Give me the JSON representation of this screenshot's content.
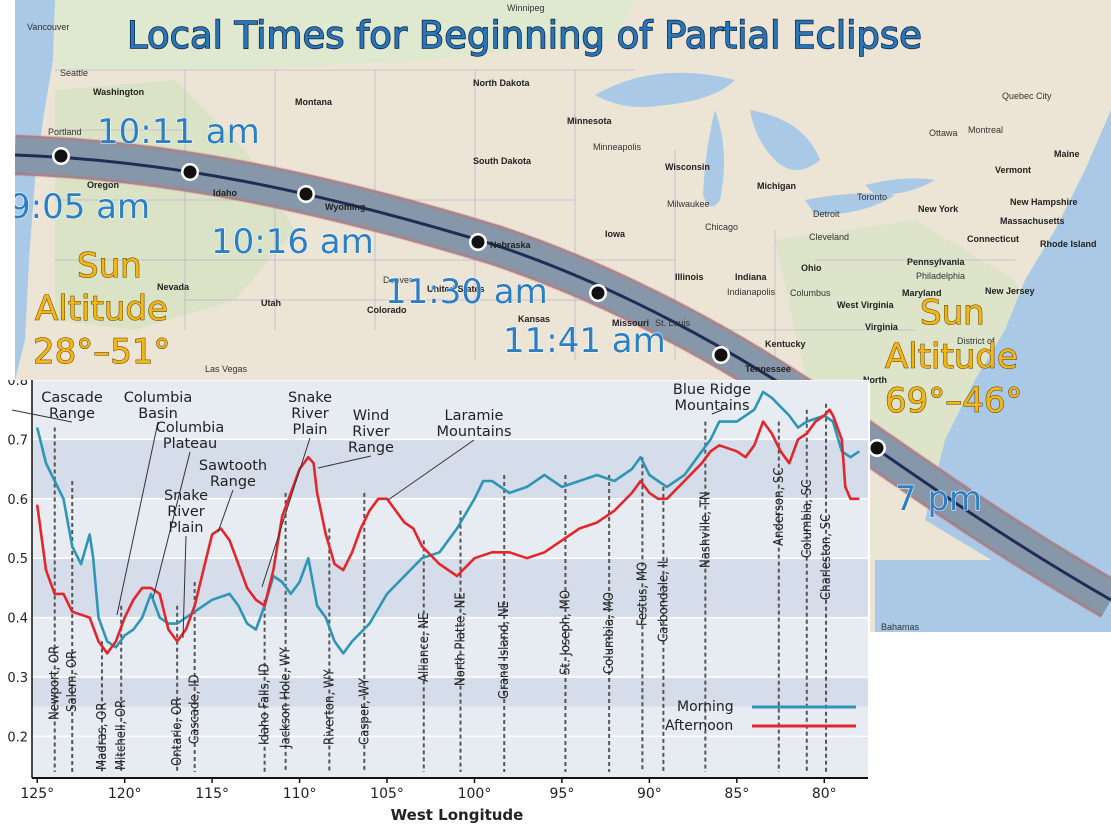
{
  "map": {
    "title": "Local Times for Beginning of Partial Eclipse",
    "times": [
      "10:11 am",
      "9:05 am",
      "10:16 am",
      "11:30 am",
      "11:41 am",
      "7 pm"
    ],
    "altitude_west": {
      "line1": "Sun",
      "line2": "Altitude",
      "line3": "28°–51°"
    },
    "altitude_east": {
      "line1": "Sun",
      "line2": "Altitude",
      "line3": "69°–46°"
    },
    "place_labels": [
      "Winnipeg",
      "Vancouver",
      "Seattle",
      "Washington",
      "Portland",
      "Montana",
      "North Dakota",
      "Minnesota",
      "Minneapolis",
      "South Dakota",
      "Wisconsin",
      "Michigan",
      "Milwaukee",
      "Detroit",
      "Toronto",
      "Ottawa",
      "Montreal",
      "Quebec City",
      "Maine",
      "Vermont",
      "New Hampshire",
      "Massachusetts",
      "New York",
      "Connecticut",
      "Rhode Island",
      "Oregon",
      "Idaho",
      "Wyoming",
      "Nebraska",
      "Iowa",
      "Chicago",
      "Cleveland",
      "Pennsylvania",
      "Philadelphia",
      "New Jersey",
      "Nevada",
      "Utah",
      "Colorado",
      "United States",
      "Denver",
      "Kansas",
      "Missouri",
      "St. Louis",
      "Illinois",
      "Indiana",
      "Indianapolis",
      "Ohio",
      "Columbus",
      "West Virginia",
      "Maryland",
      "Virginia",
      "Kentucky",
      "Tennessee",
      "Las Vegas",
      "North",
      "District of",
      "Bahamas"
    ]
  },
  "chart_data": {
    "type": "line",
    "title": "",
    "xlabel": "West Longitude",
    "ylabel": "",
    "x_direction": "reversed",
    "xlim": [
      125.3,
      77.5
    ],
    "ylim": [
      0.13,
      0.8
    ],
    "x_ticks": [
      125,
      120,
      115,
      110,
      105,
      100,
      95,
      90,
      85,
      80
    ],
    "x_tick_labels": [
      "125°",
      "120°",
      "115°",
      "110°",
      "105°",
      "100°",
      "95°",
      "90°",
      "85°",
      "80°"
    ],
    "y_ticks": [
      0.2,
      0.3,
      0.4,
      0.5,
      0.6,
      0.7,
      0.8
    ],
    "y_tick_labels": [
      "0.2",
      "0.3",
      "0.4",
      "0.5",
      "0.6",
      "0.7",
      "0.8"
    ],
    "grid": "horizontal bands",
    "legend_position": "bottom-right",
    "series": [
      {
        "name": "Morning",
        "color": "#2f95b4",
        "points": [
          [
            125.0,
            0.72
          ],
          [
            124.5,
            0.66
          ],
          [
            124.0,
            0.63
          ],
          [
            123.5,
            0.6
          ],
          [
            123.0,
            0.52
          ],
          [
            122.5,
            0.49
          ],
          [
            122.0,
            0.54
          ],
          [
            121.8,
            0.5
          ],
          [
            121.5,
            0.4
          ],
          [
            121.0,
            0.36
          ],
          [
            120.5,
            0.35
          ],
          [
            120.0,
            0.37
          ],
          [
            119.5,
            0.38
          ],
          [
            119.0,
            0.4
          ],
          [
            118.5,
            0.44
          ],
          [
            118.0,
            0.4
          ],
          [
            117.5,
            0.39
          ],
          [
            117.0,
            0.39
          ],
          [
            116.5,
            0.4
          ],
          [
            116.0,
            0.41
          ],
          [
            115.0,
            0.43
          ],
          [
            114.0,
            0.44
          ],
          [
            113.5,
            0.42
          ],
          [
            113.0,
            0.39
          ],
          [
            112.5,
            0.38
          ],
          [
            112.0,
            0.42
          ],
          [
            111.5,
            0.47
          ],
          [
            111.0,
            0.46
          ],
          [
            110.5,
            0.44
          ],
          [
            110.0,
            0.46
          ],
          [
            109.5,
            0.5
          ],
          [
            109.0,
            0.42
          ],
          [
            108.5,
            0.4
          ],
          [
            108.0,
            0.36
          ],
          [
            107.5,
            0.34
          ],
          [
            107.0,
            0.36
          ],
          [
            106.0,
            0.39
          ],
          [
            105.0,
            0.44
          ],
          [
            104.0,
            0.47
          ],
          [
            103.0,
            0.5
          ],
          [
            102.0,
            0.51
          ],
          [
            101.0,
            0.55
          ],
          [
            100.0,
            0.6
          ],
          [
            99.5,
            0.63
          ],
          [
            99.0,
            0.63
          ],
          [
            98.0,
            0.61
          ],
          [
            97.0,
            0.62
          ],
          [
            96.0,
            0.64
          ],
          [
            95.0,
            0.62
          ],
          [
            94.0,
            0.63
          ],
          [
            93.0,
            0.64
          ],
          [
            92.0,
            0.63
          ],
          [
            91.0,
            0.65
          ],
          [
            90.5,
            0.67
          ],
          [
            90.0,
            0.64
          ],
          [
            89.5,
            0.63
          ],
          [
            89.0,
            0.62
          ],
          [
            88.0,
            0.64
          ],
          [
            87.0,
            0.68
          ],
          [
            86.5,
            0.7
          ],
          [
            86.0,
            0.73
          ],
          [
            85.0,
            0.73
          ],
          [
            84.0,
            0.75
          ],
          [
            83.5,
            0.78
          ],
          [
            83.0,
            0.77
          ],
          [
            82.0,
            0.74
          ],
          [
            81.5,
            0.72
          ],
          [
            81.0,
            0.73
          ],
          [
            80.0,
            0.74
          ],
          [
            79.5,
            0.73
          ],
          [
            79.0,
            0.68
          ],
          [
            78.5,
            0.67
          ],
          [
            78.0,
            0.68
          ]
        ]
      },
      {
        "name": "Afternoon",
        "color": "#e3262b",
        "points": [
          [
            125.0,
            0.59
          ],
          [
            124.5,
            0.48
          ],
          [
            124.0,
            0.44
          ],
          [
            123.5,
            0.44
          ],
          [
            123.0,
            0.41
          ],
          [
            122.0,
            0.4
          ],
          [
            121.5,
            0.36
          ],
          [
            121.0,
            0.34
          ],
          [
            120.5,
            0.36
          ],
          [
            120.0,
            0.4
          ],
          [
            119.5,
            0.43
          ],
          [
            119.0,
            0.45
          ],
          [
            118.5,
            0.45
          ],
          [
            118.0,
            0.44
          ],
          [
            117.5,
            0.38
          ],
          [
            117.0,
            0.36
          ],
          [
            116.5,
            0.38
          ],
          [
            116.0,
            0.42
          ],
          [
            115.5,
            0.48
          ],
          [
            115.0,
            0.54
          ],
          [
            114.5,
            0.55
          ],
          [
            114.0,
            0.53
          ],
          [
            113.5,
            0.49
          ],
          [
            113.0,
            0.45
          ],
          [
            112.5,
            0.43
          ],
          [
            112.0,
            0.42
          ],
          [
            111.5,
            0.48
          ],
          [
            111.0,
            0.57
          ],
          [
            110.5,
            0.61
          ],
          [
            110.0,
            0.65
          ],
          [
            109.5,
            0.67
          ],
          [
            109.2,
            0.66
          ],
          [
            109.0,
            0.61
          ],
          [
            108.5,
            0.54
          ],
          [
            108.0,
            0.49
          ],
          [
            107.5,
            0.48
          ],
          [
            107.0,
            0.51
          ],
          [
            106.5,
            0.55
          ],
          [
            106.0,
            0.58
          ],
          [
            105.5,
            0.6
          ],
          [
            105.0,
            0.6
          ],
          [
            104.0,
            0.56
          ],
          [
            103.5,
            0.55
          ],
          [
            103.0,
            0.52
          ],
          [
            102.0,
            0.49
          ],
          [
            101.0,
            0.47
          ],
          [
            100.0,
            0.5
          ],
          [
            99.0,
            0.51
          ],
          [
            98.0,
            0.51
          ],
          [
            97.0,
            0.5
          ],
          [
            96.0,
            0.51
          ],
          [
            95.0,
            0.53
          ],
          [
            94.0,
            0.55
          ],
          [
            93.0,
            0.56
          ],
          [
            92.0,
            0.58
          ],
          [
            91.0,
            0.61
          ],
          [
            90.5,
            0.63
          ],
          [
            90.0,
            0.61
          ],
          [
            89.5,
            0.6
          ],
          [
            89.0,
            0.6
          ],
          [
            88.0,
            0.63
          ],
          [
            87.0,
            0.66
          ],
          [
            86.5,
            0.68
          ],
          [
            86.0,
            0.69
          ],
          [
            85.0,
            0.68
          ],
          [
            84.5,
            0.67
          ],
          [
            84.0,
            0.69
          ],
          [
            83.5,
            0.73
          ],
          [
            83.0,
            0.71
          ],
          [
            82.5,
            0.68
          ],
          [
            82.0,
            0.66
          ],
          [
            81.5,
            0.7
          ],
          [
            81.0,
            0.71
          ],
          [
            80.5,
            0.73
          ],
          [
            80.0,
            0.74
          ],
          [
            79.7,
            0.75
          ],
          [
            79.5,
            0.74
          ],
          [
            79.0,
            0.7
          ],
          [
            78.8,
            0.62
          ],
          [
            78.5,
            0.6
          ],
          [
            78.0,
            0.6
          ]
        ]
      }
    ],
    "region_annotations": [
      {
        "lines": [
          "Cascade",
          "Range"
        ],
        "anchor_x": 124.0
      },
      {
        "lines": [
          "Columbia",
          "Basin"
        ],
        "anchor_x": 121.0
      },
      {
        "lines": [
          "Columbia",
          "Plateau"
        ],
        "anchor_x": 118.5
      },
      {
        "lines": [
          "Sawtooth",
          "Range"
        ],
        "anchor_x": 114.5
      },
      {
        "lines": [
          "Snake",
          "River",
          "Plain"
        ],
        "anchor_x": 117.0
      },
      {
        "lines": [
          "Snake",
          "River",
          "Plain"
        ],
        "anchor_x": 112.5
      },
      {
        "lines": [
          "Wind",
          "River",
          "Range"
        ],
        "anchor_x": 109.5
      },
      {
        "lines": [
          "Laramie",
          "Mountains"
        ],
        "anchor_x": 105.0
      },
      {
        "lines": [
          "Blue Ridge",
          "Mountains"
        ],
        "anchor_x": 84.5
      }
    ],
    "city_markers": [
      {
        "name": "Newport, OR",
        "x": 124.0,
        "y": 0.72
      },
      {
        "name": "Salem, OR",
        "x": 123.0,
        "y": 0.63
      },
      {
        "name": "Madras, OR",
        "x": 121.3,
        "y": 0.36
      },
      {
        "name": "Mitchell, OR",
        "x": 120.2,
        "y": 0.42
      },
      {
        "name": "Ontario, OR",
        "x": 117.0,
        "y": 0.42
      },
      {
        "name": "Cascade, ID",
        "x": 116.0,
        "y": 0.46
      },
      {
        "name": "Idaho Falls, ID",
        "x": 112.0,
        "y": 0.43
      },
      {
        "name": "Jackson Hole, WY",
        "x": 110.8,
        "y": 0.61
      },
      {
        "name": "Riverton, WY",
        "x": 108.3,
        "y": 0.55
      },
      {
        "name": "Casper, WY",
        "x": 106.3,
        "y": 0.61
      },
      {
        "name": "Alliance, NE",
        "x": 102.9,
        "y": 0.53
      },
      {
        "name": "North Platte, NE",
        "x": 100.8,
        "y": 0.58
      },
      {
        "name": "Grand Island, NE",
        "x": 98.3,
        "y": 0.64
      },
      {
        "name": "St. Joseph, MO",
        "x": 94.8,
        "y": 0.64
      },
      {
        "name": "Columbia, MO",
        "x": 92.3,
        "y": 0.64
      },
      {
        "name": "Festus, MO",
        "x": 90.4,
        "y": 0.67
      },
      {
        "name": "Carbondale, IL",
        "x": 89.2,
        "y": 0.62
      },
      {
        "name": "Nashville, TN",
        "x": 86.8,
        "y": 0.73
      },
      {
        "name": "Anderson, SC",
        "x": 82.6,
        "y": 0.73
      },
      {
        "name": "Columbia, SC",
        "x": 81.0,
        "y": 0.75
      },
      {
        "name": "Charleston, SC",
        "x": 79.9,
        "y": 0.76
      }
    ]
  }
}
